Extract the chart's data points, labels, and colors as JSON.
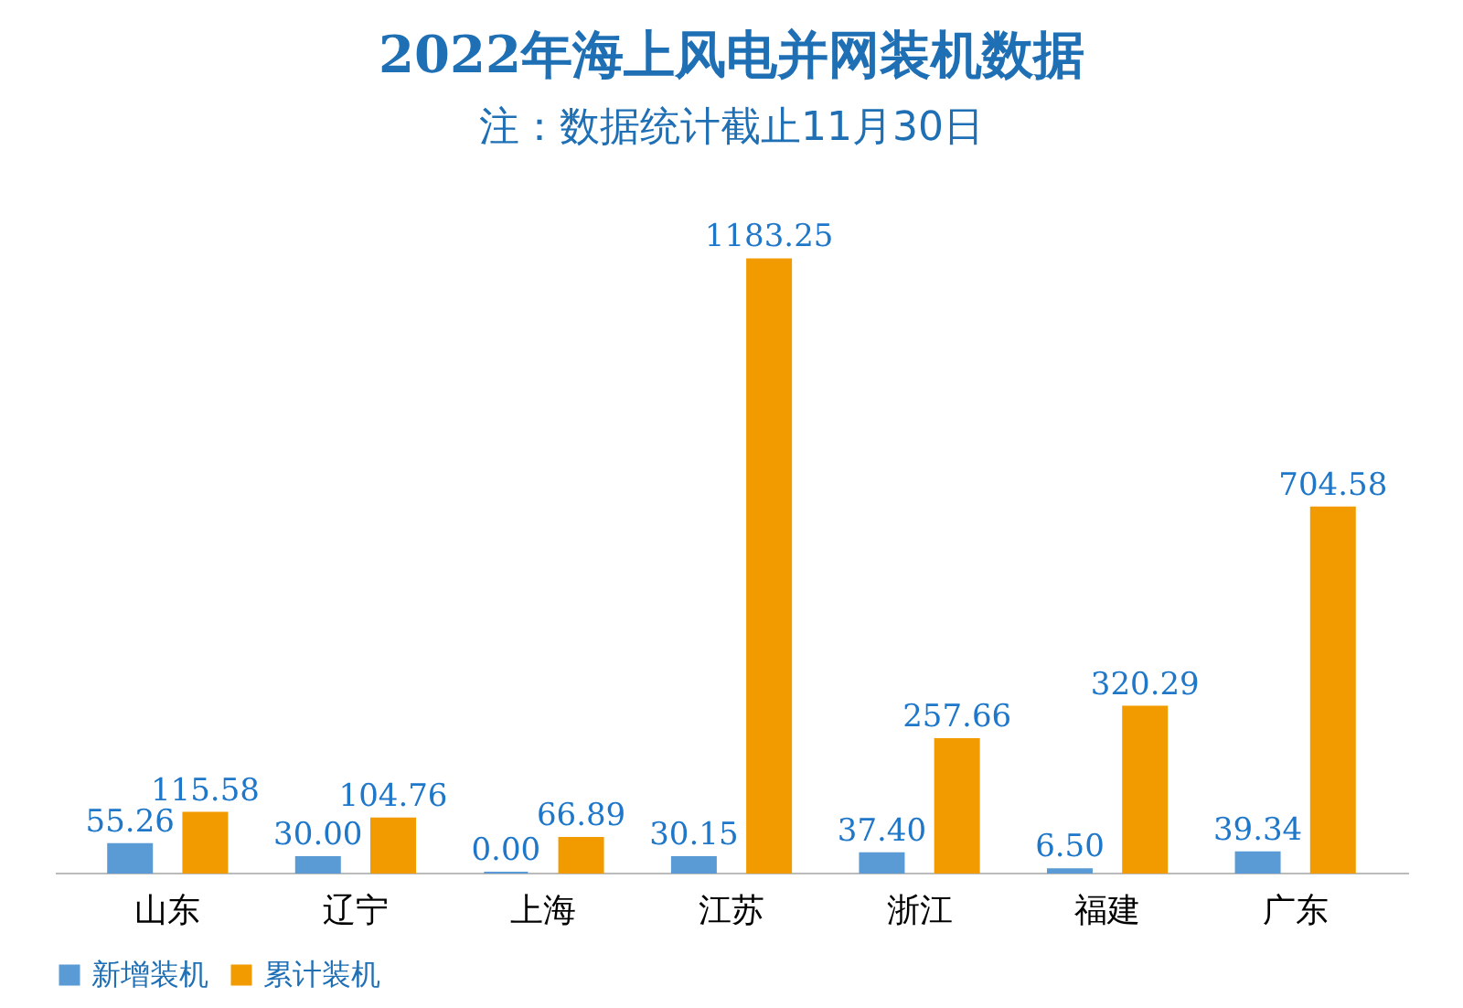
{
  "chart_data": {
    "type": "bar",
    "title": "2022年海上风电并网装机数据",
    "subtitle": "注：数据统计截止11月30日",
    "categories": [
      "山东",
      "辽宁",
      "上海",
      "江苏",
      "浙江",
      "福建",
      "广东"
    ],
    "series": [
      {
        "name": "新增装机",
        "color": "#5b9bd5",
        "values": [
          55.26,
          30.0,
          0.0,
          30.15,
          37.4,
          6.5,
          39.34
        ],
        "value_labels": [
          "55.26",
          "30.00",
          "0.00",
          "30.15",
          "37.40",
          "6.50",
          "39.34"
        ]
      },
      {
        "name": "累计装机",
        "color": "#f29b00",
        "values": [
          115.58,
          104.76,
          66.89,
          1183.25,
          257.66,
          320.29,
          704.58
        ],
        "value_labels": [
          "115.58",
          "104.76",
          "66.89",
          "1183.25",
          "257.66",
          "320.29",
          "704.58"
        ]
      }
    ],
    "legend": "bottom",
    "grid": false
  }
}
